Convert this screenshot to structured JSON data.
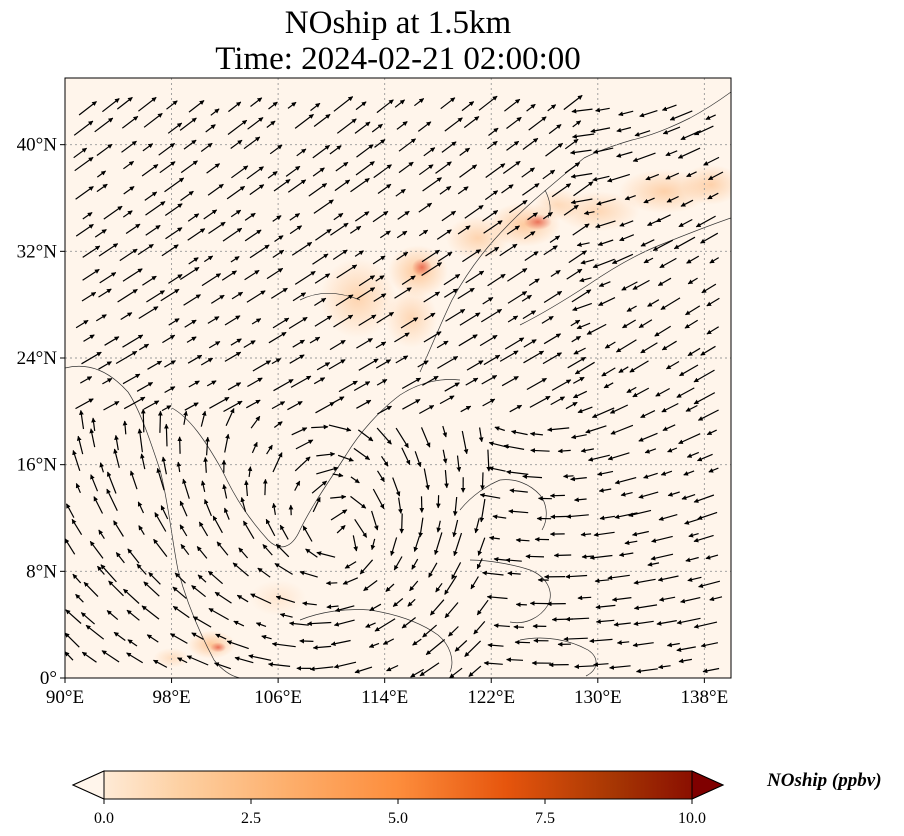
{
  "title": {
    "line1": "NOship at 1.5km",
    "line2": "Time: 2024-02-21 02:00:00"
  },
  "map": {
    "lon_range": [
      90,
      140
    ],
    "lat_range": [
      0,
      45
    ],
    "x_ticks": [
      {
        "value": 90,
        "label": "90°E"
      },
      {
        "value": 98,
        "label": "98°E"
      },
      {
        "value": 106,
        "label": "106°E"
      },
      {
        "value": 114,
        "label": "114°E"
      },
      {
        "value": 122,
        "label": "122°E"
      },
      {
        "value": 130,
        "label": "130°E"
      },
      {
        "value": 138,
        "label": "138°E"
      }
    ],
    "y_ticks": [
      {
        "value": 0,
        "label": "0°"
      },
      {
        "value": 8,
        "label": "8°N"
      },
      {
        "value": 16,
        "label": "16°N"
      },
      {
        "value": 24,
        "label": "24°N"
      },
      {
        "value": 32,
        "label": "32°N"
      },
      {
        "value": 40,
        "label": "40°N"
      }
    ],
    "gridlines": true,
    "background_color": "#fff5eb",
    "plume_color": "#fdae6b",
    "hotspot_color": "#e34a33",
    "arrow_color": "#000000"
  },
  "colorbar": {
    "label": "NOship (ppbv)",
    "range": [
      0,
      10
    ],
    "ticks": [
      {
        "value": 0,
        "label": "0.0"
      },
      {
        "value": 2.5,
        "label": "2.5"
      },
      {
        "value": 5,
        "label": "5.0"
      },
      {
        "value": 7.5,
        "label": "7.5"
      },
      {
        "value": 10,
        "label": "10.0"
      }
    ],
    "colors": [
      "#fff5eb",
      "#fdd0a2",
      "#fdae6b",
      "#fd8d3c",
      "#e6550d",
      "#a63603",
      "#7f0000"
    ],
    "extend": "both"
  }
}
